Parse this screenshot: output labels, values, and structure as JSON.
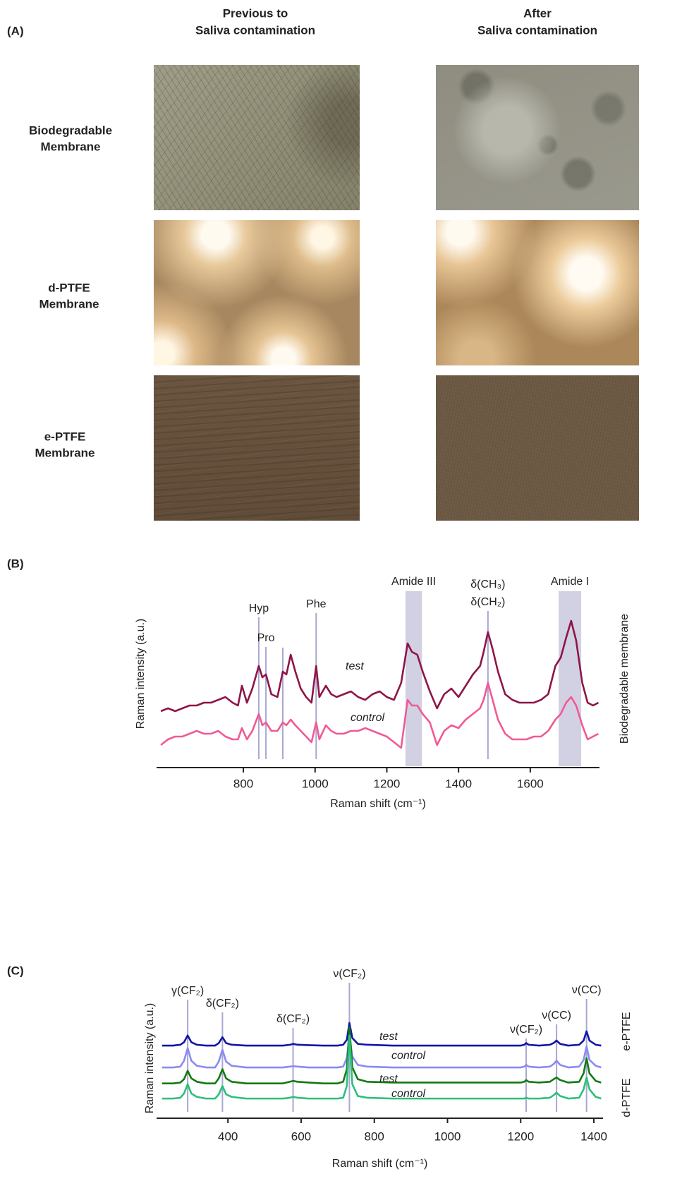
{
  "panel_labels": [
    "(A)",
    "(B)",
    "(C)"
  ],
  "panel_a": {
    "columns": [
      [
        "Previous to",
        "Saliva contamination"
      ],
      [
        "After",
        "Saliva contamination"
      ]
    ],
    "rows": [
      [
        "Biodegradable",
        "Membrane"
      ],
      [
        "d-PTFE",
        "Membrane"
      ],
      [
        "e-PTFE",
        "Membrane"
      ]
    ]
  },
  "chart_data": [
    {
      "type": "line",
      "y_label": "Raman intensity (a.u.)",
      "x_label": "Raman shift (cm⁻¹)",
      "side_labels": [
        "Biodegradable membrane"
      ],
      "x": [
        570,
        590,
        610,
        630,
        650,
        670,
        690,
        710,
        730,
        750,
        770,
        785,
        796,
        810,
        825,
        843,
        853,
        863,
        878,
        895,
        910,
        920,
        932,
        945,
        960,
        975,
        990,
        1003,
        1012,
        1030,
        1045,
        1060,
        1080,
        1100,
        1120,
        1140,
        1160,
        1180,
        1200,
        1220,
        1240,
        1258,
        1270,
        1285,
        1300,
        1320,
        1340,
        1360,
        1380,
        1400,
        1420,
        1440,
        1460,
        1470,
        1482,
        1495,
        1510,
        1530,
        1550,
        1570,
        1590,
        1610,
        1630,
        1650,
        1670,
        1685,
        1700,
        1714,
        1728,
        1745,
        1760,
        1775,
        1790
      ],
      "series": [
        {
          "name": "test",
          "color": "#8e1548",
          "values": [
            2.0,
            2.1,
            2.0,
            2.1,
            2.2,
            2.2,
            2.3,
            2.3,
            2.4,
            2.5,
            2.3,
            2.2,
            2.9,
            2.3,
            2.8,
            3.6,
            3.2,
            3.3,
            2.6,
            2.5,
            3.4,
            3.3,
            4.0,
            3.4,
            2.8,
            2.5,
            2.3,
            3.6,
            2.5,
            2.9,
            2.6,
            2.5,
            2.6,
            2.7,
            2.5,
            2.4,
            2.6,
            2.7,
            2.5,
            2.4,
            3.0,
            4.4,
            4.1,
            4.0,
            3.4,
            2.7,
            2.1,
            2.6,
            2.8,
            2.5,
            2.9,
            3.3,
            3.6,
            4.1,
            4.8,
            4.2,
            3.4,
            2.6,
            2.4,
            2.3,
            2.3,
            2.3,
            2.4,
            2.6,
            3.6,
            3.9,
            4.6,
            5.2,
            4.5,
            3.0,
            2.3,
            2.2,
            2.3
          ]
        },
        {
          "name": "control",
          "color": "#f05a95",
          "values": [
            0.8,
            1.0,
            1.1,
            1.1,
            1.2,
            1.3,
            1.2,
            1.2,
            1.3,
            1.1,
            1.0,
            1.0,
            1.4,
            1.0,
            1.3,
            1.9,
            1.5,
            1.6,
            1.3,
            1.3,
            1.6,
            1.5,
            1.7,
            1.5,
            1.3,
            1.1,
            0.9,
            1.6,
            1.0,
            1.5,
            1.3,
            1.2,
            1.2,
            1.3,
            1.3,
            1.4,
            1.3,
            1.2,
            1.1,
            0.9,
            0.7,
            2.4,
            2.2,
            2.2,
            1.9,
            1.6,
            0.8,
            1.3,
            1.5,
            1.4,
            1.7,
            1.9,
            2.1,
            2.4,
            3.0,
            2.4,
            1.7,
            1.2,
            1.0,
            1.0,
            1.0,
            1.1,
            1.1,
            1.3,
            1.7,
            1.9,
            2.3,
            2.5,
            2.2,
            1.5,
            1.0,
            1.1,
            1.2
          ]
        }
      ],
      "xlim": [
        558,
        1793
      ],
      "xticks": [
        800,
        1000,
        1200,
        1400,
        1600
      ],
      "ylim": [
        0,
        6
      ],
      "annotation_color": "#a8a8d2",
      "band_color": "#c9c9de",
      "annotations": [
        {
          "label": [
            "Hyp"
          ],
          "x": 843
        },
        {
          "label": [
            "Pro"
          ],
          "x": 863
        },
        {
          "label": null,
          "x": 910
        },
        {
          "label": [
            "Phe"
          ],
          "x": 1003
        },
        {
          "label": [
            "δ(CH₃)",
            "δ(CH₂)"
          ],
          "x": 1482
        }
      ],
      "bands": [
        {
          "label": "Amide III",
          "x": [
            1252,
            1298
          ]
        },
        {
          "label": "Amide I",
          "x": [
            1679,
            1742
          ]
        }
      ]
    },
    {
      "type": "line",
      "y_label": "Raman intensity (a.u.)",
      "x_label": "Raman shift (cm⁻¹)",
      "side_labels": [
        "e-PTFE",
        "d-PTFE"
      ],
      "x": [
        220,
        250,
        270,
        280,
        290,
        300,
        315,
        340,
        365,
        375,
        385,
        395,
        410,
        450,
        500,
        550,
        570,
        578,
        590,
        620,
        660,
        700,
        715,
        725,
        732,
        740,
        755,
        780,
        850,
        950,
        1050,
        1150,
        1200,
        1210,
        1215,
        1222,
        1250,
        1280,
        1290,
        1298,
        1308,
        1330,
        1360,
        1372,
        1380,
        1388,
        1405,
        1420
      ],
      "series": [
        {
          "name": "test",
          "color": "#1414a8",
          "values": [
            7.8,
            7.8,
            7.9,
            8.2,
            9.0,
            8.2,
            7.9,
            7.8,
            7.8,
            8.1,
            8.8,
            8.1,
            7.9,
            7.8,
            7.8,
            7.8,
            7.9,
            8.0,
            7.9,
            7.85,
            7.8,
            7.8,
            7.9,
            8.5,
            10.5,
            8.7,
            8.0,
            7.9,
            7.8,
            7.8,
            7.8,
            7.8,
            7.8,
            7.9,
            8.1,
            7.9,
            7.8,
            7.9,
            8.1,
            8.4,
            8.0,
            7.8,
            7.9,
            8.4,
            9.5,
            8.4,
            7.9,
            7.8
          ]
        },
        {
          "name": "control",
          "color": "#8a8af5",
          "values": [
            5.2,
            5.2,
            5.3,
            6.0,
            7.5,
            6.0,
            5.4,
            5.2,
            5.2,
            5.9,
            7.3,
            5.9,
            5.4,
            5.2,
            5.2,
            5.2,
            5.3,
            5.35,
            5.3,
            5.2,
            5.2,
            5.2,
            5.3,
            6.3,
            9.0,
            6.5,
            5.5,
            5.3,
            5.2,
            5.2,
            5.2,
            5.2,
            5.2,
            5.3,
            5.5,
            5.3,
            5.2,
            5.3,
            5.6,
            6.0,
            5.5,
            5.2,
            5.3,
            6.1,
            7.7,
            6.1,
            5.4,
            5.2
          ]
        },
        {
          "name": "test",
          "color": "#127a12",
          "values": [
            3.3,
            3.3,
            3.4,
            3.8,
            4.8,
            3.9,
            3.5,
            3.3,
            3.3,
            3.9,
            5.0,
            3.9,
            3.5,
            3.3,
            3.3,
            3.3,
            3.5,
            3.6,
            3.5,
            3.4,
            3.3,
            3.3,
            3.5,
            5.0,
            10.0,
            5.2,
            3.8,
            3.5,
            3.4,
            3.4,
            3.4,
            3.4,
            3.4,
            3.5,
            3.7,
            3.5,
            3.4,
            3.5,
            3.8,
            4.0,
            3.7,
            3.4,
            3.5,
            4.5,
            6.3,
            4.5,
            3.6,
            3.4
          ]
        },
        {
          "name": "control",
          "color": "#2cc07a",
          "values": [
            1.5,
            1.5,
            1.6,
            2.1,
            3.2,
            2.1,
            1.7,
            1.5,
            1.5,
            2.0,
            3.0,
            2.0,
            1.7,
            1.5,
            1.5,
            1.5,
            1.6,
            1.7,
            1.6,
            1.5,
            1.5,
            1.5,
            1.6,
            3.0,
            9.0,
            3.2,
            1.8,
            1.6,
            1.5,
            1.5,
            1.5,
            1.5,
            1.5,
            1.5,
            1.6,
            1.5,
            1.5,
            1.6,
            1.9,
            2.2,
            1.8,
            1.5,
            1.6,
            2.6,
            4.0,
            2.6,
            1.7,
            1.5
          ]
        }
      ],
      "xlim": [
        205,
        1425
      ],
      "xticks": [
        400,
        600,
        800,
        1000,
        1200,
        1400
      ],
      "ylim": [
        0,
        12
      ],
      "annotation_color": "#a8a8d2",
      "annotations": [
        {
          "label": [
            "γ(CF₂)"
          ],
          "x": 290
        },
        {
          "label": [
            "δ(CF₂)"
          ],
          "x": 385
        },
        {
          "label": [
            "δ(CF₂)"
          ],
          "x": 578
        },
        {
          "label": [
            "ν(CF₂)"
          ],
          "x": 732
        },
        {
          "label": [
            "ν(CF₂)"
          ],
          "x": 1215
        },
        {
          "label": [
            "ν(CC)"
          ],
          "x": 1298
        },
        {
          "label": [
            "ν(CC)"
          ],
          "x": 1380
        }
      ]
    }
  ]
}
